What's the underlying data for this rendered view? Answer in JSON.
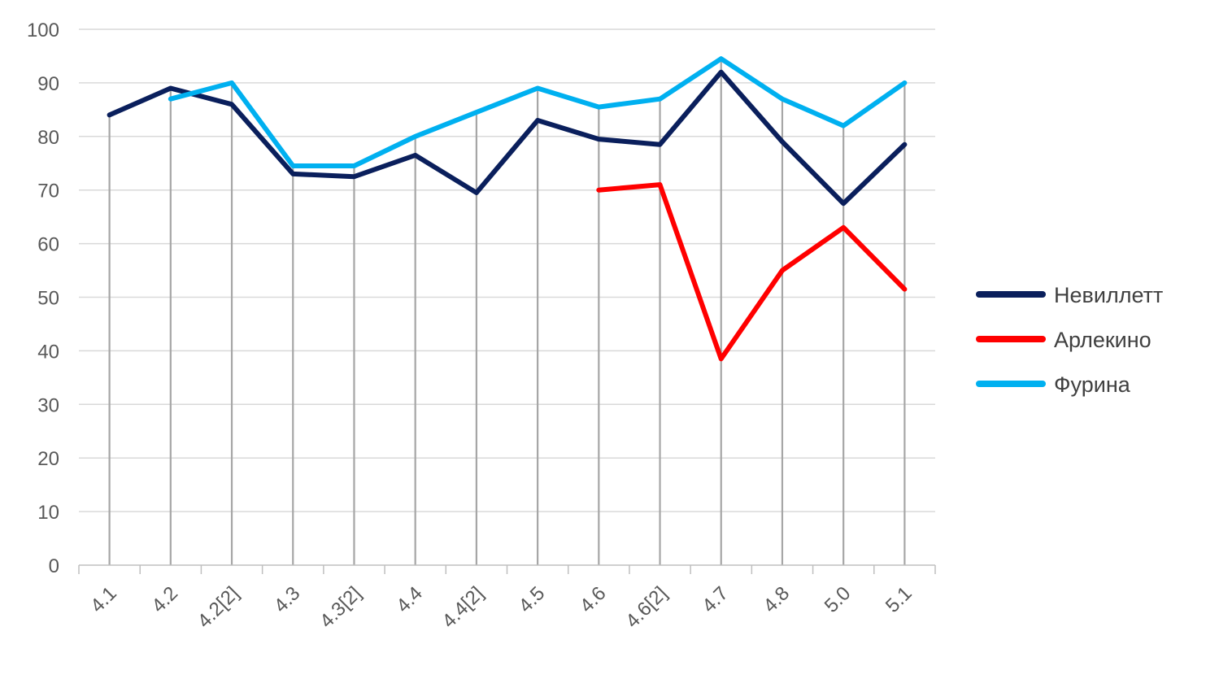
{
  "chart_data": {
    "type": "line",
    "title": "",
    "xlabel": "",
    "ylabel": "",
    "categories": [
      "4.1",
      "4.2",
      "4.2[2]",
      "4.3",
      "4.3[2]",
      "4.4",
      "4.4[2]",
      "4.5",
      "4.6",
      "4.6[2]",
      "4.7",
      "4.8",
      "5.0",
      "5.1"
    ],
    "ylim": [
      0,
      100
    ],
    "y_ticks": [
      "0",
      "10",
      "20",
      "30",
      "40",
      "50",
      "60",
      "70",
      "80",
      "90",
      "100"
    ],
    "grid": "horizontal",
    "drop_lines": true,
    "legend_position": "right",
    "series": [
      {
        "name": "Невиллетт",
        "color": "#0a1f5c",
        "values": [
          84,
          89,
          86,
          73,
          72.5,
          76.5,
          69.5,
          83,
          79.5,
          78.5,
          92,
          79,
          67.5,
          78.5
        ]
      },
      {
        "name": "Арлекино",
        "color": "#ff0000",
        "values": [
          null,
          null,
          null,
          null,
          null,
          null,
          null,
          null,
          70,
          71,
          38.5,
          55,
          63,
          51.5
        ]
      },
      {
        "name": "Фурина",
        "color": "#00b0f0",
        "values": [
          null,
          87,
          90,
          74.5,
          74.5,
          80,
          84.5,
          89,
          85.5,
          87,
          94.5,
          87,
          82,
          90
        ]
      }
    ]
  }
}
